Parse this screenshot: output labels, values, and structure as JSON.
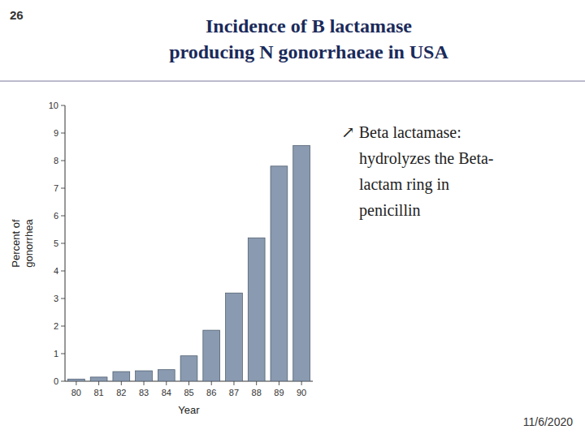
{
  "chart_data": {
    "type": "bar",
    "title": "Incidence of B lactamase\nproducing N gonorrhaeae in USA",
    "x_label": "Year",
    "y_label": "Percent of\ngonorrhea",
    "categories": [
      "80",
      "81",
      "82",
      "83",
      "84",
      "85",
      "86",
      "87",
      "88",
      "89",
      "90"
    ],
    "values": [
      0.08,
      0.15,
      0.35,
      0.38,
      0.42,
      0.92,
      1.85,
      3.2,
      5.2,
      7.8,
      8.55
    ],
    "color": "#8a9ab0",
    "ylim": [
      0,
      10
    ],
    "yticks": [
      0,
      1,
      2,
      3,
      4,
      5,
      6,
      7,
      8,
      9,
      10
    ],
    "grid": false,
    "annotations": [
      "26",
      "↗ Beta lactamase:\nhydrolyzes the Beta-\nlactam ring in\npenicillin",
      "11/6/2020"
    ]
  }
}
